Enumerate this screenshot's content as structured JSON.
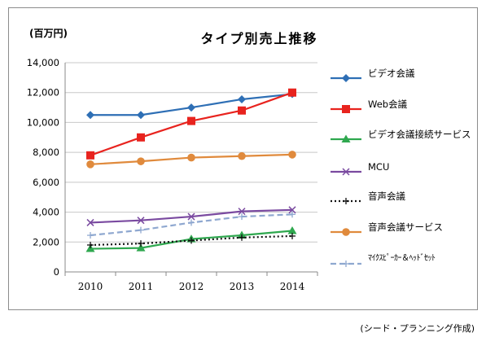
{
  "header": {
    "unit": "(百万円)",
    "title": "タイプ別売上推移"
  },
  "footer": {
    "source": "(シード・プランニング作成)"
  },
  "chart_data": {
    "type": "line",
    "title": "タイプ別売上推移",
    "ylabel": "(百万円)",
    "xlabel": "",
    "ylim": [
      0,
      14000
    ],
    "yticks": [
      0,
      2000,
      4000,
      6000,
      8000,
      10000,
      12000,
      14000
    ],
    "ytick_labels": [
      "0",
      "2,000",
      "4,000",
      "6,000",
      "8,000",
      "10,000",
      "12,000",
      "14,000"
    ],
    "categories": [
      "2010",
      "2011",
      "2012",
      "2013",
      "2014"
    ],
    "grid": true,
    "legend_position": "right",
    "series": [
      {
        "name": "ビデオ会議",
        "values": [
          10500,
          10500,
          11000,
          11550,
          11900
        ],
        "color": "#2e6fb5",
        "marker": "diamond",
        "dash": "solid"
      },
      {
        "name": "Web会議",
        "values": [
          7800,
          9000,
          10100,
          10800,
          12000
        ],
        "color": "#e8231e",
        "marker": "square",
        "dash": "solid"
      },
      {
        "name": "ビデオ会議接続サービス",
        "values": [
          1550,
          1600,
          2200,
          2450,
          2750
        ],
        "color": "#2fa84f",
        "marker": "triangle",
        "dash": "solid"
      },
      {
        "name": "MCU",
        "values": [
          3300,
          3450,
          3700,
          4050,
          4150
        ],
        "color": "#7a4aa0",
        "marker": "x",
        "dash": "solid"
      },
      {
        "name": "音声会議",
        "values": [
          1800,
          1900,
          2100,
          2300,
          2400
        ],
        "color": "#111111",
        "marker": "plus",
        "dash": "dotted"
      },
      {
        "name": "音声会議サービス",
        "values": [
          7200,
          7400,
          7650,
          7750,
          7850
        ],
        "color": "#e08a3c",
        "marker": "circle",
        "dash": "solid"
      },
      {
        "name": "ﾏｲｸｽﾋﾟｰｶｰ＆ﾍｯﾄﾞｾｯﾄ",
        "values": [
          2450,
          2800,
          3300,
          3700,
          3850
        ],
        "color": "#8fa8d0",
        "marker": "plus",
        "dash": "dashed"
      }
    ]
  },
  "legend": {
    "items": [
      {
        "label": "ビデオ会議"
      },
      {
        "label": "Web会議"
      },
      {
        "label": "ビデオ会議接続サービス"
      },
      {
        "label": "MCU"
      },
      {
        "label": "音声会議"
      },
      {
        "label": "音声会議サービス"
      },
      {
        "label": "ﾏｲｸｽﾋﾟｰｶｰ＆ﾍｯﾄﾞｾｯﾄ"
      }
    ]
  }
}
